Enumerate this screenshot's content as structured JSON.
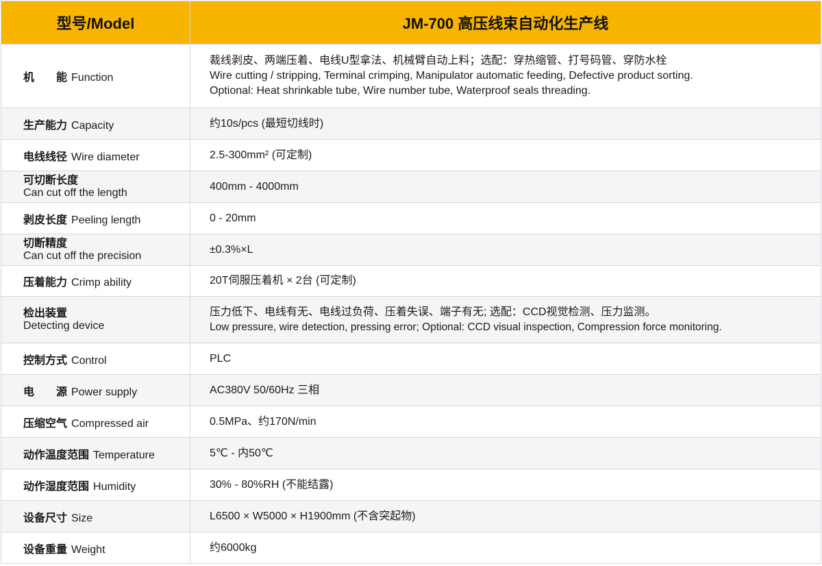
{
  "header": {
    "col1": "型号/Model",
    "col2": "JM-700 高压线束自动化生产线"
  },
  "rows": [
    {
      "zh": "机　　能",
      "en": "Function",
      "values": [
        "裁线剥皮、两端压着、电线U型拿法、机械臂自动上料；选配：穿热缩管、打号码管、穿防水栓",
        "Wire cutting / stripping, Terminal crimping, Manipulator automatic feeding, Defective product sorting.",
        "Optional: Heat shrinkable tube, Wire number tube,  Waterproof seals threading."
      ]
    },
    {
      "zh": "生产能力",
      "en": "Capacity",
      "values": [
        "约10s/pcs (最短切线时)"
      ]
    },
    {
      "zh": "电线线径",
      "en": "Wire diameter",
      "values": [
        "2.5-300mm² (可定制)"
      ]
    },
    {
      "zh": "可切断长度",
      "en": "Can cut off the length",
      "values": [
        "400mm - 4000mm"
      ]
    },
    {
      "zh": "剥皮长度",
      "en": "Peeling length",
      "values": [
        "0 - 20mm"
      ]
    },
    {
      "zh": "切断精度",
      "en": "Can cut off the precision",
      "values": [
        "±0.3%×L"
      ]
    },
    {
      "zh": "压着能力",
      "en": "Crimp ability",
      "values": [
        "20T伺服压着机 × 2台 (可定制)"
      ]
    },
    {
      "zh": "检出装置",
      "en": "Detecting device",
      "values": [
        "压力低下、电线有无、电线过负荷、压着失误、端子有无; 选配：CCD视觉检测、压力监测。",
        "Low pressure, wire detection,  pressing error; Optional: CCD visual inspection, Compression force monitoring."
      ]
    },
    {
      "zh": "控制方式",
      "en": "Control",
      "values": [
        "PLC"
      ]
    },
    {
      "zh": "电　　源",
      "en": "Power supply",
      "values": [
        "AC380V 50/60Hz 三相"
      ]
    },
    {
      "zh": "压缩空气",
      "en": "Compressed air",
      "values": [
        "0.5MPa、约170N/min"
      ]
    },
    {
      "zh": "动作温度范围",
      "en": "Temperature",
      "values": [
        "5℃ - 内50℃"
      ]
    },
    {
      "zh": "动作湿度范围",
      "en": "Humidity",
      "values": [
        "30% - 80%RH (不能结露)"
      ]
    },
    {
      "zh": "设备尺寸",
      "en": "Size",
      "values": [
        "L6500 × W5000 × H1900mm (不含突起物)"
      ]
    },
    {
      "zh": "设备重量",
      "en": "Weight",
      "values": [
        "约6000kg"
      ]
    }
  ],
  "colors": {
    "header_bg": "#f7b500",
    "alt_row_bg": "#f4f5f7",
    "border": "#d4d6da"
  }
}
